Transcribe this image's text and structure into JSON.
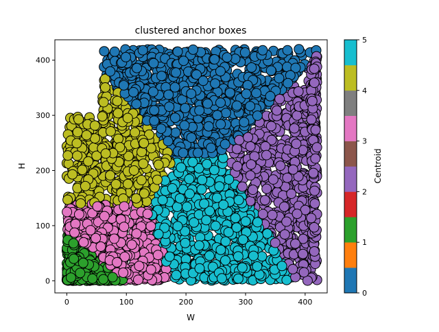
{
  "chart_data": {
    "type": "scatter",
    "title": "clustered anchor boxes",
    "xlabel": "W",
    "ylabel": "H",
    "xlim": [
      -20,
      437
    ],
    "ylim": [
      -22,
      437
    ],
    "xticks": [
      0,
      100,
      200,
      300,
      400
    ],
    "yticks": [
      0,
      100,
      200,
      300,
      400
    ],
    "grid": false,
    "marker": "circle, black edge",
    "clusters": [
      {
        "centroid": 0,
        "color": "#1f77b4",
        "region": "upper-middle (large H)"
      },
      {
        "centroid": 1,
        "color": "#2ca02c",
        "region": "bottom-left (small W, small H)"
      },
      {
        "centroid": 2,
        "color": "#9467bd",
        "region": "right (large W)"
      },
      {
        "centroid": 3,
        "color": "#e377c2",
        "region": "lower-left"
      },
      {
        "centroid": 4,
        "color": "#bcbd22",
        "region": "upper-left"
      },
      {
        "centroid": 5,
        "color": "#17becf",
        "region": "middle"
      }
    ],
    "colorbar": {
      "label": "Centroid",
      "range": [
        0,
        5
      ],
      "ticks": [
        "0",
        "1",
        "2",
        "3",
        "4",
        "5"
      ],
      "colors": [
        "#1f77b4",
        "#ff7f0e",
        "#2ca02c",
        "#d62728",
        "#9467bd",
        "#8c564b",
        "#e377c2",
        "#7f7f7f",
        "#bcbd22",
        "#17becf"
      ]
    }
  }
}
